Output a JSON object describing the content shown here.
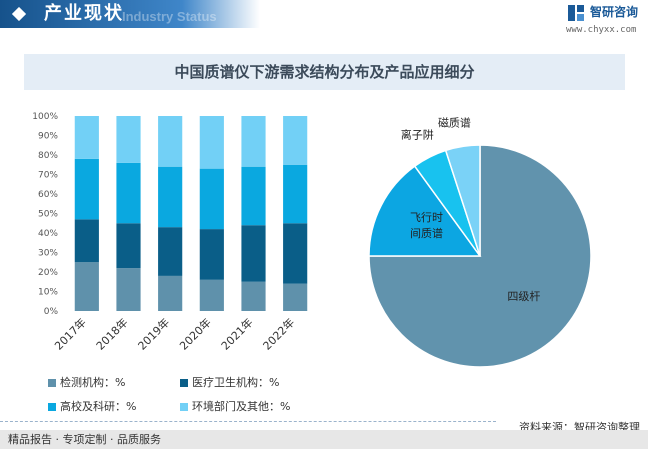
{
  "header": {
    "title": "产业现状",
    "subtitle": "Industry Status",
    "brand_name": "智研咨询",
    "brand_site": "www.chyxx.com"
  },
  "chart_title": "中国质谱仪下游需求结构分布及产品应用细分",
  "chart_data": [
    {
      "type": "bar",
      "stacked": true,
      "categories": [
        "2017年",
        "2018年",
        "2019年",
        "2020年",
        "2021年",
        "2022年"
      ],
      "series": [
        {
          "name": "检测机构：%",
          "color": "#5f91ab",
          "values": [
            25,
            22,
            18,
            16,
            15,
            14
          ]
        },
        {
          "name": "医疗卫生机构：%",
          "color": "#0a5e88",
          "values": [
            22,
            23,
            25,
            26,
            29,
            31
          ]
        },
        {
          "name": "高校及科研：%",
          "color": "#0aa8e0",
          "values": [
            31,
            31,
            31,
            31,
            30,
            30
          ]
        },
        {
          "name": "环境部门及其他：%",
          "color": "#72d0f6",
          "values": [
            22,
            24,
            26,
            27,
            26,
            25
          ]
        }
      ],
      "ylim": [
        0,
        100
      ],
      "yticks": [
        "0%",
        "10%",
        "20%",
        "30%",
        "40%",
        "50%",
        "60%",
        "70%",
        "80%",
        "90%",
        "100%"
      ],
      "legend_position": "bottom",
      "grid": false
    },
    {
      "type": "pie",
      "labels": [
        "四级杆",
        "飞行时间质谱",
        "离子阱",
        "磁质谱"
      ],
      "label_lines": [
        [
          "四级杆"
        ],
        [
          "飞行时",
          "间质谱"
        ],
        [
          "离子阱"
        ],
        [
          "磁质谱"
        ]
      ],
      "values": [
        75,
        15,
        5,
        5
      ],
      "colors": [
        "#6193ad",
        "#0ca6e2",
        "#18c2ef",
        "#7ad2f7"
      ]
    }
  ],
  "legend": [
    {
      "label": "检测机构：%",
      "color": "#5f91ab"
    },
    {
      "label": "医疗卫生机构：%",
      "color": "#0a5e88"
    },
    {
      "label": "高校及科研：%",
      "color": "#0aa8e0"
    },
    {
      "label": "环境部门及其他：%",
      "color": "#72d0f6"
    }
  ],
  "source": "资料来源：智研咨询整理",
  "footer": "精品报告 · 专项定制 · 品质服务"
}
